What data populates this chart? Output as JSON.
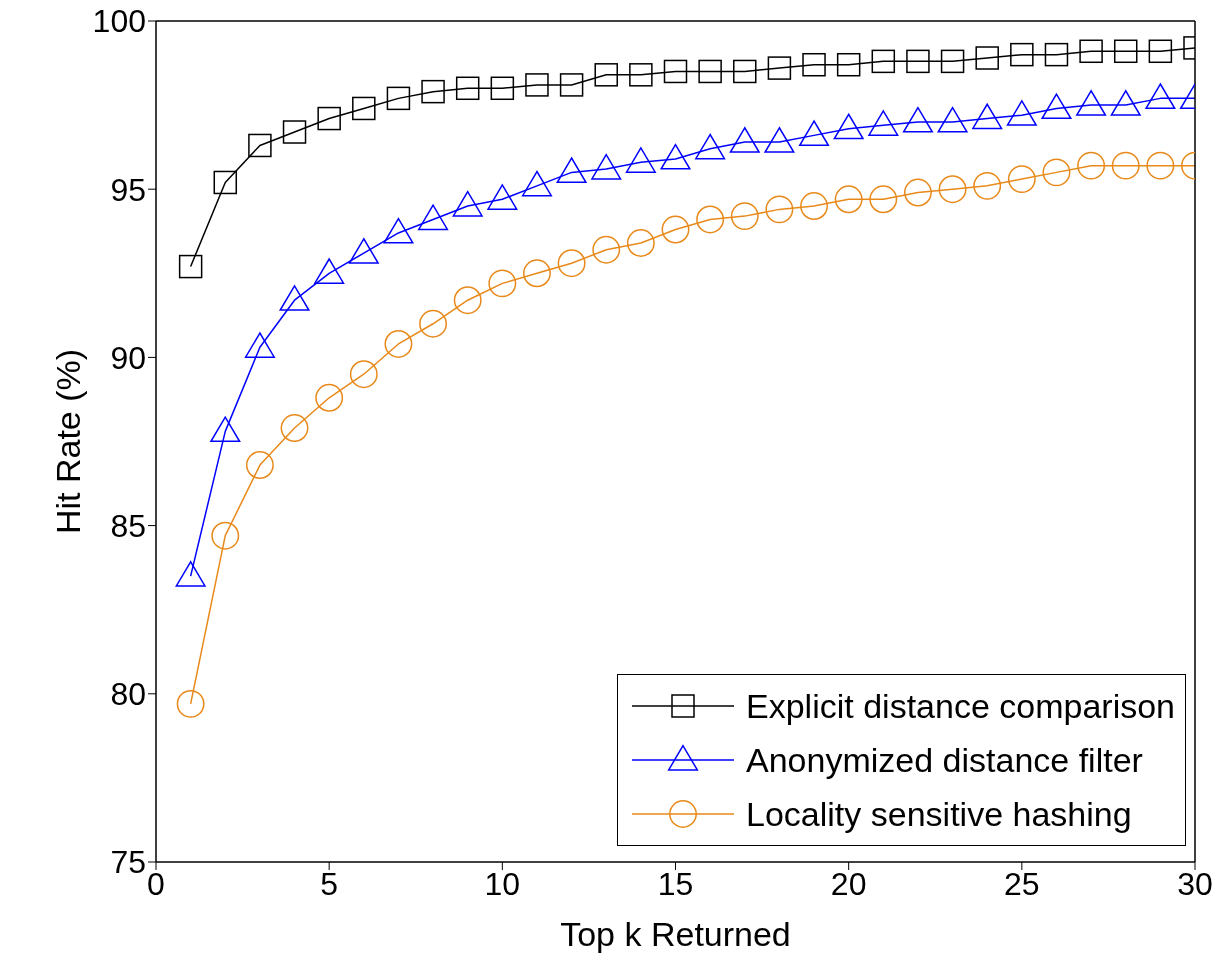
{
  "chart_data": {
    "type": "line",
    "xlabel": "Top k Returned",
    "ylabel": "Hit Rate (%)",
    "x": [
      1,
      2,
      3,
      4,
      5,
      6,
      7,
      8,
      9,
      10,
      11,
      12,
      13,
      14,
      15,
      16,
      17,
      18,
      19,
      20,
      21,
      22,
      23,
      24,
      25,
      26,
      27,
      28,
      29,
      30
    ],
    "series": [
      {
        "name": "Explicit distance comparison",
        "color": "#000000",
        "marker": "square",
        "values": [
          92.7,
          95.2,
          96.3,
          96.7,
          97.1,
          97.4,
          97.7,
          97.9,
          98.0,
          98.0,
          98.1,
          98.1,
          98.4,
          98.4,
          98.5,
          98.5,
          98.5,
          98.6,
          98.7,
          98.7,
          98.8,
          98.8,
          98.8,
          98.9,
          99.0,
          99.0,
          99.1,
          99.1,
          99.1,
          99.2
        ]
      },
      {
        "name": "Anonymized distance filter",
        "color": "#0000ff",
        "marker": "triangle",
        "values": [
          83.5,
          87.8,
          90.3,
          91.7,
          92.5,
          93.1,
          93.7,
          94.1,
          94.5,
          94.7,
          95.1,
          95.5,
          95.6,
          95.8,
          95.9,
          96.2,
          96.4,
          96.4,
          96.6,
          96.8,
          96.9,
          97.0,
          97.0,
          97.1,
          97.2,
          97.4,
          97.5,
          97.5,
          97.7,
          97.7
        ]
      },
      {
        "name": "Locality sensitive hashing",
        "color": "#e8891a",
        "marker": "circle",
        "values": [
          79.7,
          84.7,
          86.8,
          87.9,
          88.8,
          89.5,
          90.4,
          91.0,
          91.7,
          92.2,
          92.5,
          92.8,
          93.2,
          93.4,
          93.8,
          94.1,
          94.2,
          94.4,
          94.5,
          94.7,
          94.7,
          94.9,
          95.0,
          95.1,
          95.3,
          95.5,
          95.7,
          95.7,
          95.7,
          95.7
        ]
      }
    ],
    "xlim": [
      0,
      30
    ],
    "xticks": [
      0,
      5,
      10,
      15,
      20,
      25,
      30
    ],
    "ylim": [
      75,
      100
    ],
    "yticks": [
      75,
      80,
      85,
      90,
      95,
      100
    ],
    "grid": false,
    "legend": "bottom right",
    "line_style": "solid"
  }
}
